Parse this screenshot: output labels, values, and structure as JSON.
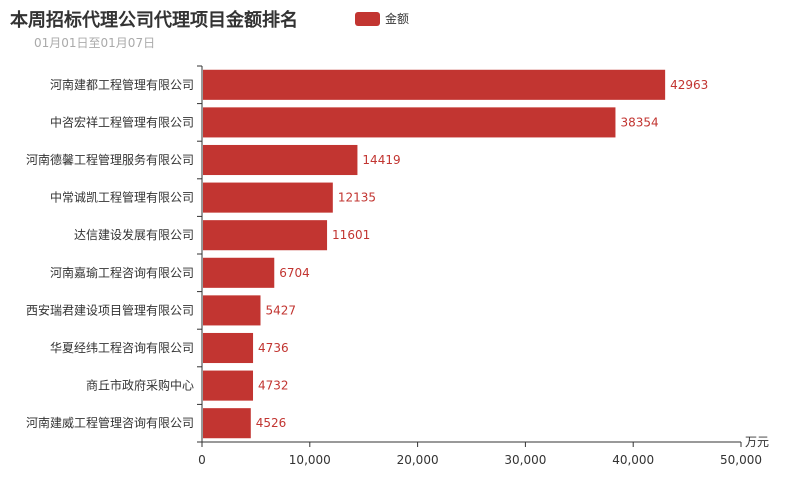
{
  "chart_data": {
    "type": "bar",
    "orientation": "horizontal",
    "title": "本周招标代理公司代理项目金额排名",
    "subtitle": "01月01日至01月07日",
    "series": [
      {
        "name": "金额",
        "color": "#c23531",
        "values": [
          42963,
          38354,
          14419,
          12135,
          11601,
          6704,
          5427,
          4736,
          4732,
          4526
        ]
      }
    ],
    "categories": [
      "河南建都工程管理有限公司",
      "中咨宏祥工程管理有限公司",
      "河南德馨工程管理服务有限公司",
      "中常诚凯工程管理有限公司",
      "达信建设发展有限公司",
      "河南嘉瑜工程咨询有限公司",
      "西安瑞君建设项目管理有限公司",
      "华夏经纬工程咨询有限公司",
      "商丘市政府采购中心",
      "河南建威工程管理咨询有限公司"
    ],
    "xlabel": "万元",
    "xlim": [
      0,
      50000
    ],
    "xticks": [
      0,
      10000,
      20000,
      30000,
      40000,
      50000
    ],
    "xtick_labels": [
      "0",
      "10,000",
      "20,000",
      "30,000",
      "40,000",
      "50,000"
    ],
    "legend_position": "top",
    "grid": false
  }
}
